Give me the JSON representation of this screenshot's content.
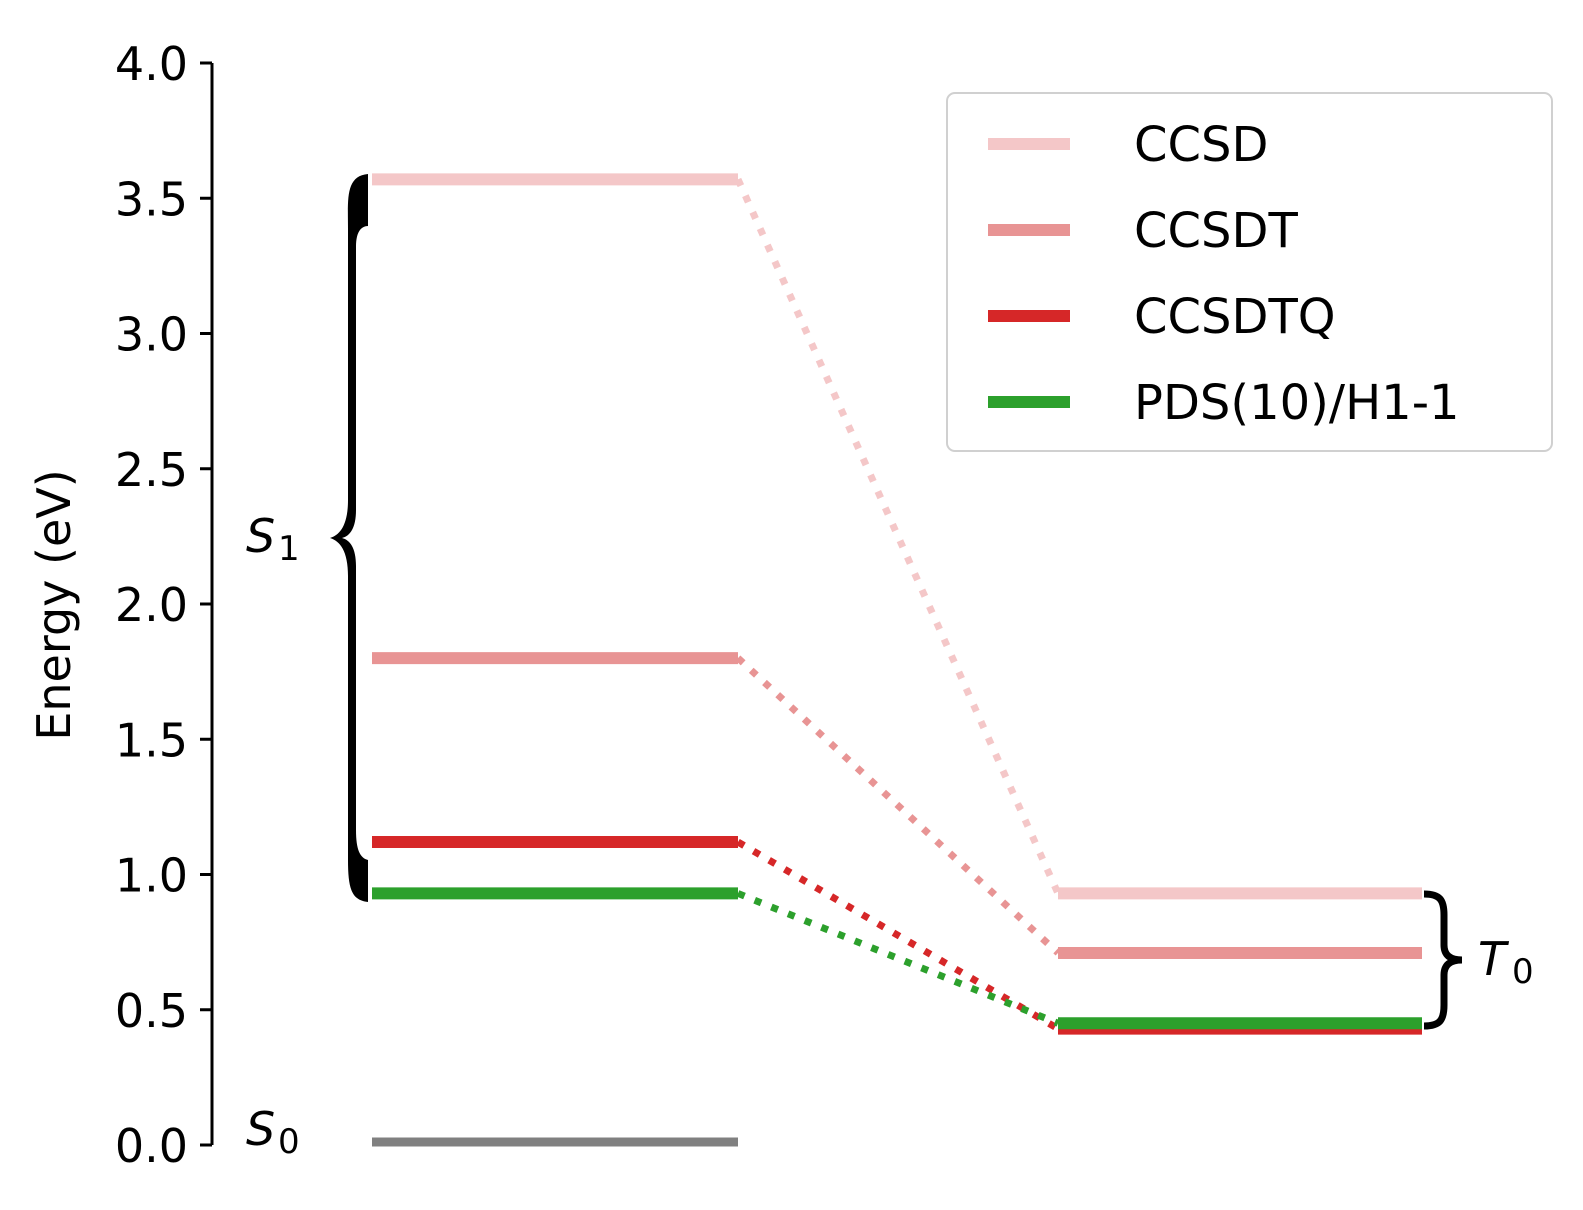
{
  "chart_data": {
    "type": "energy-level-diagram",
    "ylabel": "Energy (eV)",
    "ylim": [
      0,
      4.0
    ],
    "yticks": [
      "0.0",
      "0.5",
      "1.0",
      "1.5",
      "2.0",
      "2.5",
      "3.0",
      "3.5",
      "4.0"
    ],
    "grid": false,
    "legend_position": "top-right",
    "states": {
      "S0": {
        "label": "S",
        "subscript": "0"
      },
      "S1": {
        "label": "S",
        "subscript": "1"
      },
      "T0": {
        "label": "T",
        "subscript": "0"
      }
    },
    "ground_state": {
      "energy": 0.0,
      "color": "#808080"
    },
    "series": [
      {
        "name": "CCSD",
        "color": "#f4c7c8",
        "S1": 3.57,
        "T0": 0.93
      },
      {
        "name": "CCSDT",
        "color": "#e89494",
        "S1": 1.8,
        "T0": 0.71
      },
      {
        "name": "CCSDTQ",
        "color": "#d62728",
        "S1": 1.12,
        "T0": 0.43
      },
      {
        "name": "PDS(10)/H1-1",
        "color": "#2ca02c",
        "S1": 0.93,
        "T0": 0.45
      }
    ]
  }
}
